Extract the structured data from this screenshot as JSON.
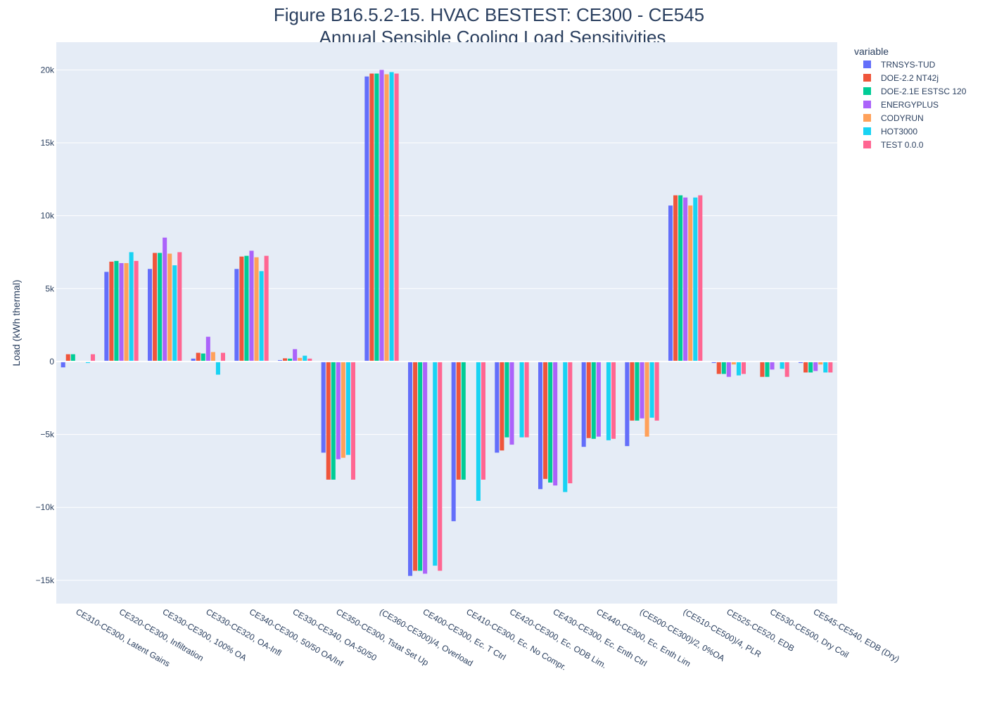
{
  "chart_data": {
    "type": "bar",
    "title": "Figure B16.5.2-15. HVAC BESTEST: CE300 - CE545",
    "subtitle": "Annual Sensible Cooling Load Sensitivities",
    "xlabel": "",
    "ylabel": "Load (kWh thermal)",
    "ylim": [
      -16600,
      21900
    ],
    "y_ticks": [
      -15000,
      -10000,
      -5000,
      0,
      5000,
      10000,
      15000,
      20000
    ],
    "y_tick_labels": [
      "−15k",
      "−10k",
      "−5k",
      "0",
      "5k",
      "10k",
      "15k",
      "20k"
    ],
    "grid": true,
    "legend_position": "top-right",
    "legend_title": "variable",
    "categories": [
      "CE310-CE300, Latent Gains",
      "CE320-CE300, Infiltration",
      "CE330-CE300, 100% OA",
      "CE330-CE320, OA-Infl",
      "CE340-CE300, 50/50 OA/Inf",
      "CE330-CE340, OA-50/50",
      "CE350-CE300, Tstat Set Up",
      "(CE360-CE300)/4, Overload",
      "CE400-CE300, Ec. T Ctrl",
      "CE410-CE300, Ec. No Compr.",
      "CE420-CE300, Ec. ODB Lim.",
      "CE430-CE300, Ec. Enth Ctrl",
      "CE440-CE300, Ec. Enth Lim",
      "(CE500-CE300)/2, 0%OA",
      "(CE510-CE500)/4, PLR",
      "CE525-CE520, EDB",
      "CE530-CE500, Dry Coil",
      "CE545-CE540, EDB (Dry)"
    ],
    "series": [
      {
        "name": "TRNSYS-TUD",
        "color": "#636efa",
        "values": [
          -400,
          6150,
          6350,
          200,
          6350,
          100,
          -6250,
          19550,
          -14700,
          -10950,
          -6250,
          -8750,
          -5850,
          -5800,
          10700,
          -100,
          0,
          -100
        ]
      },
      {
        "name": "DOE-2.2 NT42j",
        "color": "#EF553B",
        "values": [
          500,
          6850,
          7450,
          600,
          7200,
          220,
          -8100,
          19750,
          -14350,
          -8100,
          -6100,
          -8050,
          -5250,
          -4050,
          11400,
          -850,
          -1050,
          -750
        ]
      },
      {
        "name": "DOE-2.1E ESTSC 120",
        "color": "#00cc96",
        "values": [
          500,
          6900,
          7450,
          550,
          7250,
          200,
          -8100,
          19750,
          -14350,
          -8100,
          -5200,
          -8300,
          -5300,
          -4050,
          11400,
          -850,
          -1050,
          -750
        ]
      },
      {
        "name": "ENERGYPLUS",
        "color": "#ab63fa",
        "values": [
          -50,
          6750,
          8500,
          1700,
          7600,
          850,
          -6700,
          20000,
          -14550,
          0,
          -5700,
          -8500,
          -5150,
          -3900,
          11250,
          -1050,
          -550,
          -650
        ]
      },
      {
        "name": "CODYRUN",
        "color": "#FFA15A",
        "values": [
          -50,
          6750,
          7400,
          650,
          7150,
          250,
          -6600,
          19700,
          0,
          0,
          0,
          0,
          0,
          -5150,
          10700,
          -200,
          0,
          -200
        ]
      },
      {
        "name": "HOT3000",
        "color": "#19d3f3",
        "values": [
          -100,
          7500,
          6600,
          -900,
          6200,
          400,
          -6400,
          19850,
          -14000,
          -9550,
          -5200,
          -8950,
          -5400,
          -3850,
          11250,
          -950,
          -500,
          -750
        ]
      },
      {
        "name": "TEST 0.0.0",
        "color": "#FF6692",
        "values": [
          500,
          6900,
          7500,
          600,
          7250,
          200,
          -8100,
          19750,
          -14350,
          -8100,
          -5200,
          -8350,
          -5300,
          -4050,
          11400,
          -850,
          -1050,
          -750
        ]
      }
    ]
  }
}
